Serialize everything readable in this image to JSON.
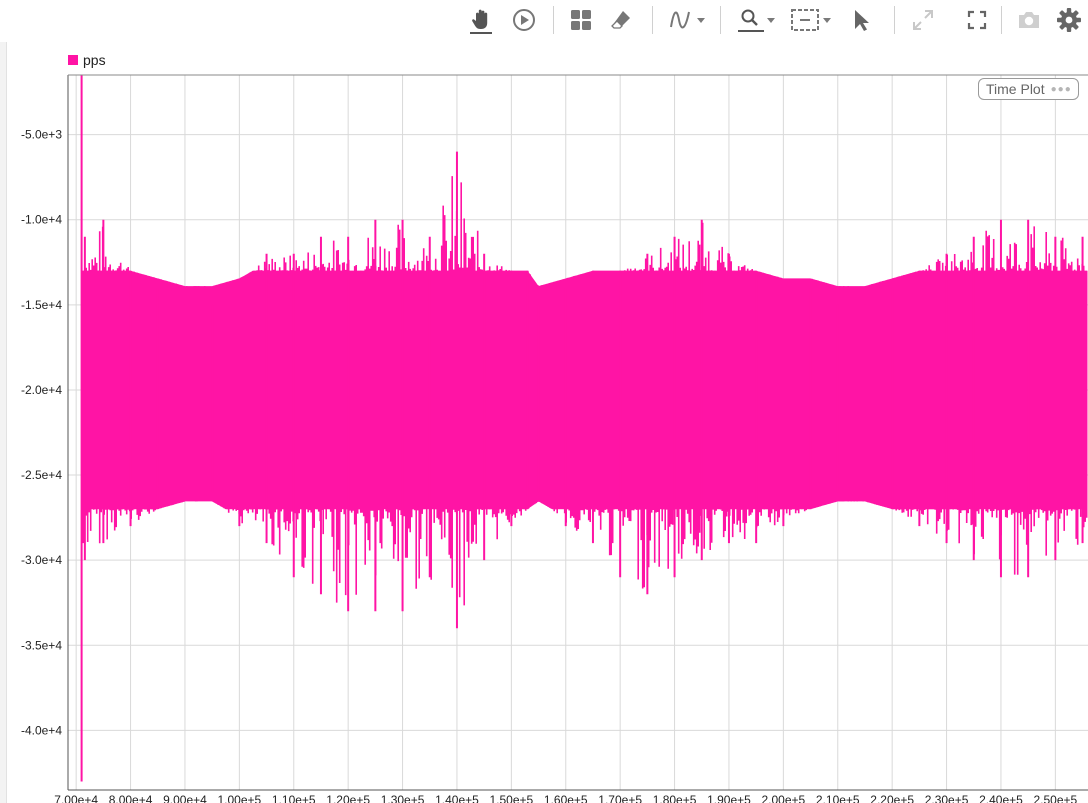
{
  "toolbar": {
    "items": [
      "pan-hand",
      "play",
      "layout-grid",
      "eraser",
      "signal-wave",
      "zoom-magnifier",
      "zoom-box",
      "pointer-arrow",
      "expand-arrows",
      "fullscreen",
      "camera",
      "settings-gear"
    ]
  },
  "plot_tag": {
    "label": "Time Plot",
    "dots": "●●●"
  },
  "colors": {
    "series": "#ff14a5",
    "grid": "#d9d9d9",
    "axis": "#555555"
  },
  "chart_data": {
    "type": "line",
    "title": "",
    "xlabel": "",
    "ylabel": "",
    "legend": {
      "placement": "top-left",
      "entries": [
        "pps"
      ]
    },
    "grid": true,
    "xlim": [
      68500,
      256000
    ],
    "ylim": [
      -43500,
      -1500
    ],
    "x_ticks": [
      70000,
      80000,
      90000,
      100000,
      110000,
      120000,
      130000,
      140000,
      150000,
      160000,
      170000,
      180000,
      190000,
      200000,
      210000,
      220000,
      230000,
      240000,
      250000
    ],
    "x_tick_labels": [
      "7.00e+4",
      "8.00e+4",
      "9.00e+4",
      "1.00e+5",
      "1.10e+5",
      "1.20e+5",
      "1.30e+5",
      "1.40e+5",
      "1.50e+5",
      "1.60e+5",
      "1.70e+5",
      "1.80e+5",
      "1.90e+5",
      "2.00e+5",
      "2.10e+5",
      "2.20e+5",
      "2.30e+5",
      "2.40e+5",
      "2.50e+5"
    ],
    "y_ticks": [
      -5000,
      -10000,
      -15000,
      -20000,
      -25000,
      -30000,
      -35000,
      -40000
    ],
    "y_tick_labels": [
      "-5.0e+3",
      "-1.0e+4",
      "-1.5e+4",
      "-2.0e+4",
      "-2.5e+4",
      "-3.0e+4",
      "-3.5e+4",
      "-4.0e+4"
    ],
    "series": [
      {
        "name": "pps",
        "color": "#ff14a5",
        "description_points": {
          "x": [
            71000,
            71300,
            71600,
            75000,
            80000,
            85000,
            90000,
            95000,
            100000,
            105000,
            110000,
            115000,
            120000,
            125000,
            130000,
            135000,
            140000,
            145000,
            150000,
            153000,
            155000,
            160000,
            165000,
            170000,
            175000,
            180000,
            185000,
            190000,
            195000,
            200000,
            205000,
            210000,
            215000,
            220000,
            225000,
            230000,
            235000,
            240000,
            245000,
            250000,
            255000
          ],
          "y_max": [
            -1500,
            -13000,
            -11000,
            -10000,
            -13000,
            -14000,
            -15000,
            -15000,
            -14000,
            -12000,
            -12000,
            -11000,
            -11000,
            -10000,
            -10000,
            -11000,
            -6000,
            -12000,
            -13000,
            -13000,
            -15000,
            -14000,
            -13000,
            -13000,
            -12000,
            -11000,
            -10000,
            -12000,
            -13000,
            -14000,
            -14000,
            -15000,
            -15000,
            -14000,
            -13000,
            -12000,
            -11000,
            -10000,
            -10000,
            -11000,
            -11000
          ],
          "y_min": [
            -43000,
            -29000,
            -30000,
            -29000,
            -28000,
            -27000,
            -26000,
            -26000,
            -28000,
            -29000,
            -31000,
            -32000,
            -33000,
            -33000,
            -33000,
            -31000,
            -34000,
            -30000,
            -28000,
            -27000,
            -26000,
            -28000,
            -29000,
            -31000,
            -32000,
            -31000,
            -30000,
            -29000,
            -29000,
            -28000,
            -27000,
            -26000,
            -26000,
            -27000,
            -28000,
            -29000,
            -30000,
            -31000,
            -31000,
            -30000,
            -29000
          ]
        },
        "band_upper": -13000,
        "band_lower": -27000
      }
    ]
  }
}
